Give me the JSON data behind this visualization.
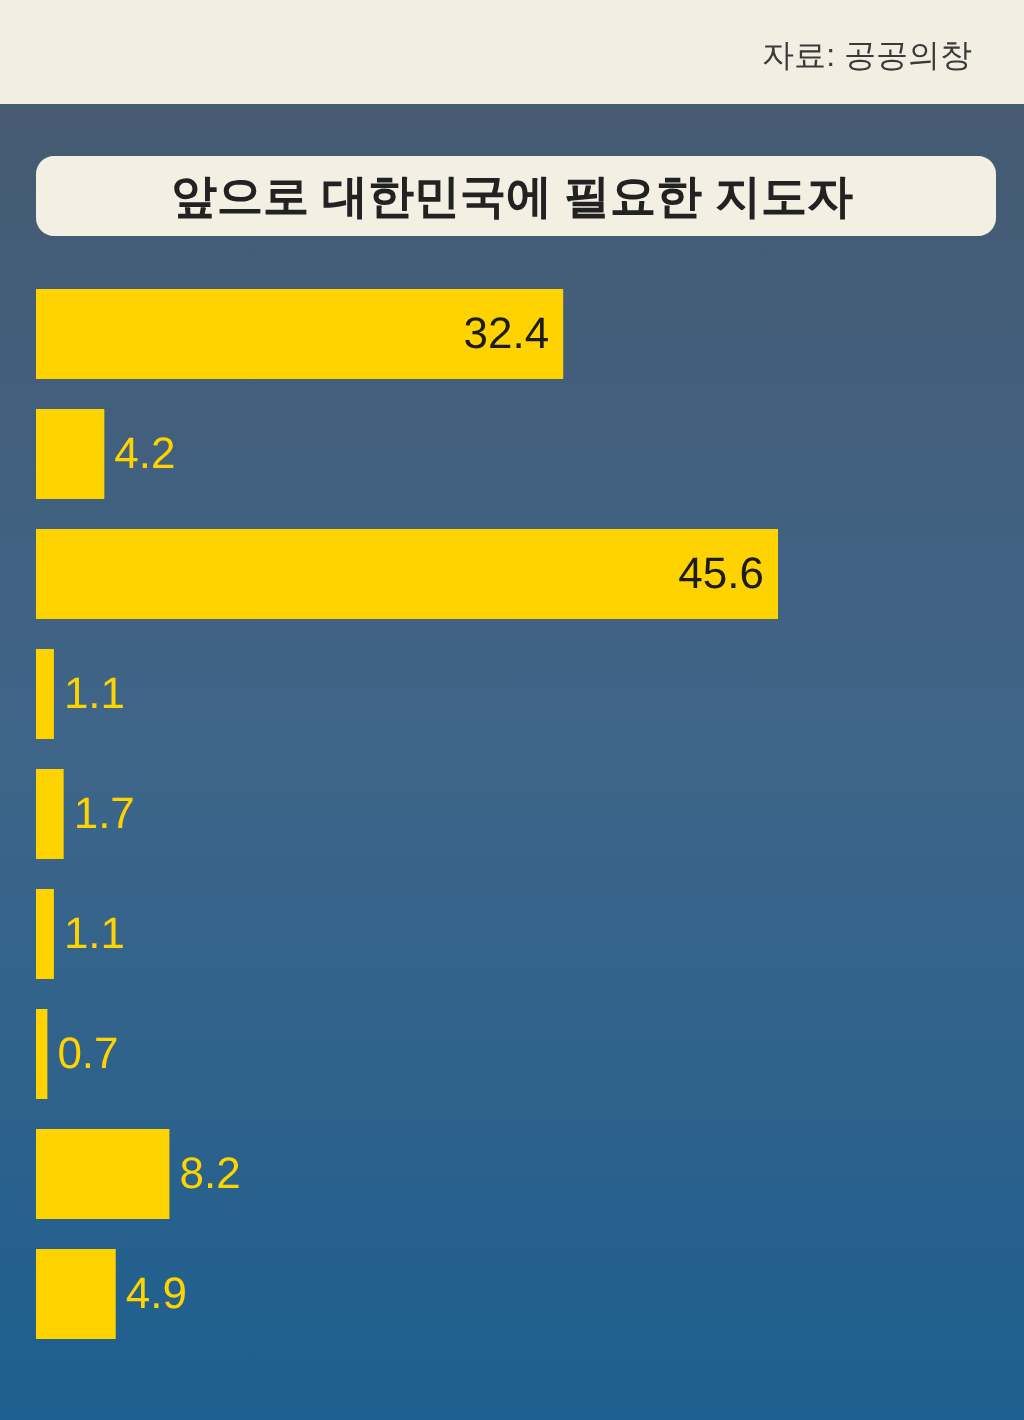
{
  "chart_data": {
    "type": "bar",
    "orientation": "horizontal",
    "title": "앞으로 대한민국에 필요한 지도자",
    "annotations": [
      "자료: 공공의창"
    ],
    "categories": [
      null,
      null,
      null,
      null,
      null,
      null,
      null,
      null,
      null
    ],
    "values": [
      32.4,
      4.2,
      45.6,
      1.1,
      1.7,
      1.1,
      0.7,
      8.2,
      4.9
    ],
    "color": "#ffd300",
    "data_labels": true
  }
}
